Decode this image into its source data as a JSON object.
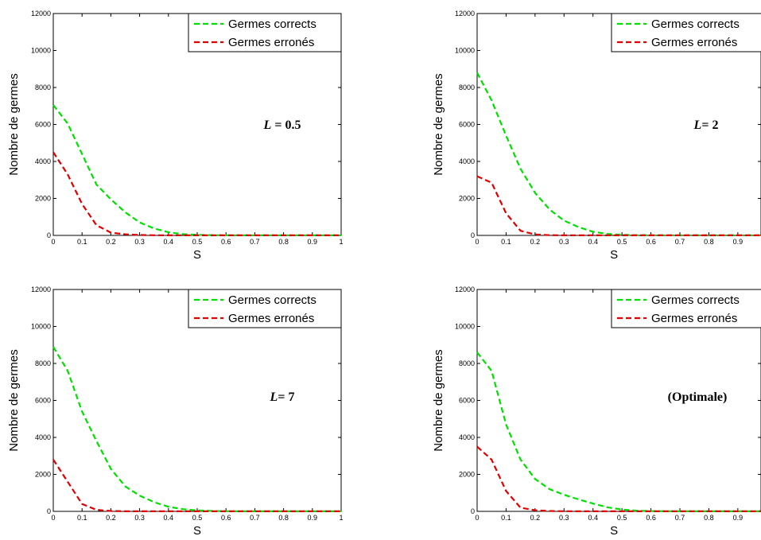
{
  "chart_data": [
    {
      "type": "line",
      "xlabel": "S",
      "ylabel": "Nombre de germes",
      "xlim": [
        0,
        1
      ],
      "ylim": [
        0,
        12000
      ],
      "xticks": [
        0,
        0.1,
        0.2,
        0.3,
        0.4,
        0.5,
        0.6,
        0.7,
        0.8,
        0.9,
        1
      ],
      "xtick_labels": [
        "0",
        "0.1",
        "0.2",
        "0.3",
        "0.4",
        "0.5",
        "0.6",
        "0.7",
        "0.8",
        "0.9",
        "1"
      ],
      "yticks": [
        0,
        2000,
        4000,
        6000,
        8000,
        10000,
        12000
      ],
      "ytick_labels": [
        "0",
        "2000",
        "4000",
        "6000",
        "8000",
        "10000",
        "12000"
      ],
      "legend_position": "top-right",
      "annotation": {
        "italic": "L",
        "rest": " = 0.5"
      },
      "x": [
        0,
        0.05,
        0.1,
        0.15,
        0.2,
        0.25,
        0.3,
        0.35,
        0.4,
        0.45,
        0.5,
        0.55,
        0.6,
        0.65,
        0.7,
        0.75,
        0.8,
        0.85,
        0.9,
        0.95,
        1
      ],
      "series": [
        {
          "name": "Germes corrects",
          "color": "#00e000",
          "dash": "dashed",
          "values": [
            7050,
            6050,
            4400,
            2750,
            1950,
            1250,
            700,
            380,
            170,
            70,
            30,
            15,
            10,
            5,
            5,
            5,
            5,
            5,
            5,
            5,
            5
          ]
        },
        {
          "name": "Germes erronés",
          "color": "#e00000",
          "dash": "dashed",
          "values": [
            4500,
            3300,
            1700,
            550,
            150,
            60,
            20,
            10,
            5,
            5,
            5,
            5,
            5,
            5,
            5,
            5,
            5,
            5,
            5,
            5,
            5
          ]
        }
      ]
    },
    {
      "type": "line",
      "xlabel": "S",
      "ylabel": "Nombre de germes",
      "xlim": [
        0,
        1
      ],
      "ylim": [
        0,
        12000
      ],
      "xticks": [
        0,
        0.1,
        0.2,
        0.3,
        0.4,
        0.5,
        0.6,
        0.7,
        0.8,
        0.9
      ],
      "xtick_labels": [
        "0",
        "0.1",
        "0.2",
        "0.3",
        "0.4",
        "0.5",
        "0.6",
        "0.7",
        "0.8",
        "0.9"
      ],
      "yticks": [
        0,
        2000,
        4000,
        6000,
        8000,
        10000,
        12000
      ],
      "ytick_labels": [
        "0",
        "2000",
        "4000",
        "6000",
        "8000",
        "10000",
        "12000"
      ],
      "legend_position": "top-right",
      "annotation": {
        "italic": "L",
        "rest": "= 2"
      },
      "x": [
        0,
        0.05,
        0.1,
        0.15,
        0.2,
        0.25,
        0.3,
        0.35,
        0.4,
        0.45,
        0.5,
        0.55,
        0.6,
        0.65,
        0.7,
        0.75,
        0.8,
        0.85,
        0.9,
        0.95,
        1
      ],
      "series": [
        {
          "name": "Germes corrects",
          "color": "#00e000",
          "dash": "dashed",
          "values": [
            8800,
            7300,
            5400,
            3600,
            2300,
            1400,
            800,
            450,
            200,
            80,
            30,
            15,
            10,
            5,
            5,
            5,
            5,
            5,
            5,
            5,
            5
          ]
        },
        {
          "name": "Germes erronés",
          "color": "#e00000",
          "dash": "dashed",
          "values": [
            3200,
            2850,
            1200,
            250,
            50,
            15,
            5,
            5,
            5,
            5,
            5,
            5,
            5,
            5,
            5,
            5,
            5,
            5,
            5,
            5,
            5
          ]
        }
      ]
    },
    {
      "type": "line",
      "xlabel": "S",
      "ylabel": "Nombre de germes",
      "xlim": [
        0,
        1
      ],
      "ylim": [
        0,
        12000
      ],
      "xticks": [
        0,
        0.1,
        0.2,
        0.3,
        0.4,
        0.5,
        0.6,
        0.7,
        0.8,
        0.9,
        1
      ],
      "xtick_labels": [
        "0",
        "0.1",
        "0.2",
        "0.3",
        "0.4",
        "0.5",
        "0.6",
        "0.7",
        "0.8",
        "0.9",
        "1"
      ],
      "yticks": [
        0,
        2000,
        4000,
        6000,
        8000,
        10000,
        12000
      ],
      "ytick_labels": [
        "0",
        "2000",
        "4000",
        "6000",
        "8000",
        "10000",
        "12000"
      ],
      "legend_position": "top-right",
      "annotation": {
        "italic": "L",
        "rest": "= 7"
      },
      "x": [
        0,
        0.05,
        0.1,
        0.15,
        0.2,
        0.25,
        0.3,
        0.35,
        0.4,
        0.45,
        0.5,
        0.55,
        0.6,
        0.65,
        0.7,
        0.75,
        0.8,
        0.85,
        0.9,
        0.95,
        1
      ],
      "series": [
        {
          "name": "Germes corrects",
          "color": "#00e000",
          "dash": "dashed",
          "values": [
            8900,
            7600,
            5400,
            3800,
            2300,
            1350,
            850,
            500,
            250,
            120,
            50,
            20,
            10,
            5,
            5,
            5,
            5,
            5,
            5,
            5,
            5
          ]
        },
        {
          "name": "Germes erronés",
          "color": "#e00000",
          "dash": "dashed",
          "values": [
            2800,
            1600,
            400,
            80,
            20,
            5,
            5,
            5,
            5,
            5,
            5,
            5,
            5,
            5,
            5,
            5,
            5,
            5,
            5,
            5,
            5
          ]
        }
      ]
    },
    {
      "type": "line",
      "xlabel": "S",
      "ylabel": "Nombre de germes",
      "xlim": [
        0,
        1
      ],
      "ylim": [
        0,
        12000
      ],
      "xticks": [
        0,
        0.1,
        0.2,
        0.3,
        0.4,
        0.5,
        0.6,
        0.7,
        0.8,
        0.9
      ],
      "xtick_labels": [
        "0",
        "0.1",
        "0.2",
        "0.3",
        "0.4",
        "0.5",
        "0.6",
        "0.7",
        "0.8",
        "0.9"
      ],
      "yticks": [
        0,
        2000,
        4000,
        6000,
        8000,
        10000,
        12000
      ],
      "ytick_labels": [
        "0",
        "2000",
        "4000",
        "6000",
        "8000",
        "10000",
        "12000"
      ],
      "legend_position": "top-right",
      "annotation": {
        "italic": "",
        "rest": "(Optimale)"
      },
      "x": [
        0,
        0.05,
        0.1,
        0.15,
        0.2,
        0.25,
        0.3,
        0.35,
        0.4,
        0.45,
        0.5,
        0.55,
        0.6,
        0.65,
        0.7,
        0.75,
        0.8,
        0.85,
        0.9,
        0.95,
        1
      ],
      "series": [
        {
          "name": "Germes corrects",
          "color": "#00e000",
          "dash": "dashed",
          "values": [
            8600,
            7600,
            4700,
            2800,
            1750,
            1200,
            900,
            650,
            420,
            220,
            100,
            40,
            15,
            10,
            5,
            5,
            5,
            5,
            5,
            5,
            5
          ]
        },
        {
          "name": "Germes erronés",
          "color": "#e00000",
          "dash": "dashed",
          "values": [
            3500,
            2800,
            1100,
            200,
            60,
            20,
            10,
            5,
            5,
            5,
            5,
            5,
            5,
            5,
            5,
            5,
            5,
            5,
            5,
            5,
            5
          ]
        }
      ]
    }
  ]
}
